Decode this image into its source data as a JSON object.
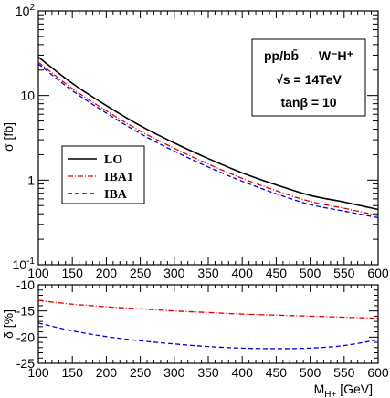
{
  "chart_data": [
    {
      "type": "line",
      "xlabel": "",
      "ylabel": "σ [fb]",
      "xlim": [
        100,
        600
      ],
      "ylim": [
        0.1,
        100
      ],
      "yscale": "log",
      "x_ticks": [
        "100",
        "150",
        "200",
        "250",
        "300",
        "350",
        "400",
        "450",
        "500",
        "550",
        "600"
      ],
      "y_ticks": [
        {
          "base": "10",
          "exp": "2"
        },
        {
          "base": "10",
          "exp": ""
        },
        {
          "base": "1",
          "exp": ""
        },
        {
          "base": "10",
          "exp": "-1"
        }
      ],
      "info_box": {
        "line1": "pp/bb̄ → W⁻H⁺",
        "line2": "√s = 14TeV",
        "line3": "tanβ = 10"
      },
      "legend_position": "middle-left",
      "series": [
        {
          "name": "LO",
          "color": "#000000",
          "dash": "solid",
          "x": [
            100,
            150,
            200,
            250,
            300,
            350,
            400,
            450,
            500,
            550,
            600
          ],
          "values": [
            28.5,
            13.9,
            7.6,
            4.4,
            2.75,
            1.8,
            1.22,
            0.88,
            0.66,
            0.55,
            0.45
          ]
        },
        {
          "name": "IBA1",
          "color": "#dd0000",
          "dash": "dashdot",
          "x": [
            100,
            150,
            200,
            250,
            300,
            350,
            400,
            450,
            500,
            550,
            600
          ],
          "values": [
            24.8,
            12.1,
            6.6,
            3.8,
            2.38,
            1.55,
            1.05,
            0.75,
            0.56,
            0.465,
            0.38
          ]
        },
        {
          "name": "IBA",
          "color": "#0000dd",
          "dash": "dashed",
          "x": [
            100,
            150,
            200,
            250,
            300,
            350,
            400,
            450,
            500,
            550,
            600
          ],
          "values": [
            23.6,
            11.4,
            6.2,
            3.55,
            2.2,
            1.43,
            0.97,
            0.69,
            0.515,
            0.43,
            0.36
          ]
        }
      ]
    },
    {
      "type": "line",
      "xlabel": "M_H+ [GeV]",
      "ylabel": "δ [%]",
      "xlim": [
        100,
        600
      ],
      "ylim": [
        -25,
        -10
      ],
      "x_ticks": [
        "100",
        "150",
        "200",
        "250",
        "300",
        "350",
        "400",
        "450",
        "500",
        "550",
        "600"
      ],
      "y_ticks": [
        "-10",
        "-15",
        "-20",
        "-25"
      ],
      "series": [
        {
          "name": "IBA1",
          "color": "#dd0000",
          "dash": "dashdot",
          "x": [
            100,
            150,
            200,
            250,
            300,
            350,
            400,
            450,
            500,
            550,
            600
          ],
          "values": [
            -13.0,
            -13.7,
            -14.2,
            -14.6,
            -15.0,
            -15.3,
            -15.6,
            -15.8,
            -16.0,
            -16.2,
            -16.4
          ]
        },
        {
          "name": "IBA",
          "color": "#0000dd",
          "dash": "dashed",
          "x": [
            100,
            150,
            200,
            250,
            300,
            350,
            400,
            450,
            500,
            550,
            600
          ],
          "values": [
            -17.3,
            -18.8,
            -19.9,
            -20.7,
            -21.3,
            -21.8,
            -22.1,
            -22.2,
            -22.1,
            -21.6,
            -20.5
          ]
        }
      ]
    }
  ]
}
